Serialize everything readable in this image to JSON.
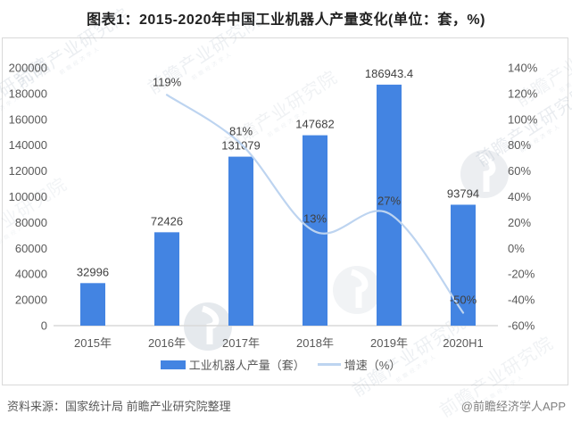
{
  "title": "图表1：2015-2020年中国工业机器人产量变化(单位：套，%)",
  "legend": {
    "bar_label": "工业机器人产量（套）",
    "line_label": "增速（%）"
  },
  "footer": {
    "source": "资料来源：国家统计局 前瞻产业研究院整理",
    "credit": "@前瞻经济学人APP"
  },
  "watermark": {
    "text": "前瞻产业研究院",
    "subtext": "前瞻经济学人"
  },
  "colors": {
    "bar": "#4384E2",
    "line": "#BDD4F0",
    "axis": "#d9d9d9",
    "tick_text": "#595959",
    "data_label": "#404040"
  },
  "chart_data": {
    "type": "bar+line",
    "title": "图表1：2015-2020年中国工业机器人产量变化(单位：套，%)",
    "categories": [
      "2015年",
      "2016年",
      "2017年",
      "2018年",
      "2019年",
      "2020H1"
    ],
    "series": [
      {
        "name": "工业机器人产量（套）",
        "type": "bar",
        "values": [
          32996,
          72426,
          131079,
          147682,
          186943.4,
          93794
        ],
        "labels": [
          "32996",
          "72426",
          "131079",
          "147682",
          "186943.4",
          "93794"
        ]
      },
      {
        "name": "增速（%）",
        "type": "line",
        "values": [
          null,
          119,
          81,
          13,
          27,
          -50
        ],
        "labels": [
          null,
          "119%",
          "81%",
          "13%",
          "27%",
          "-50%"
        ]
      }
    ],
    "left_axis": {
      "min": 0,
      "max": 200000,
      "step": 20000
    },
    "right_axis": {
      "min": -60,
      "max": 140,
      "step": 20,
      "suffix": "%"
    },
    "grid": false,
    "legend_position": "bottom"
  }
}
